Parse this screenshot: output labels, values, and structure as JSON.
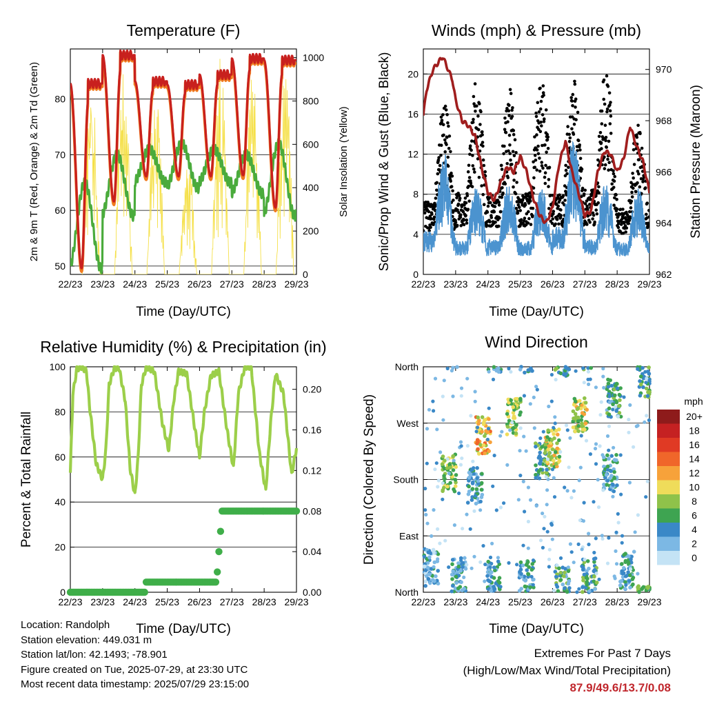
{
  "x_ticks": [
    "22/23",
    "23/23",
    "24/23",
    "25/23",
    "26/23",
    "27/23",
    "28/23",
    "29/23"
  ],
  "info": {
    "location": "Location: Randolph",
    "elevation": "Station elevation: 449.031 m",
    "latlon": "Station lat/lon: 42.1493; -78.901",
    "created": "Figure created on Tue, 2025-07-29, at 23:30 UTC",
    "recent": "Most recent data timestamp: 2025/07/29 23:15:00"
  },
  "extremes": {
    "line1": "Extremes For Past 7 Days",
    "line2": "(High/Low/Max Wind/Total Precipitation)",
    "values": "87.9/49.6/13.7/0.08"
  },
  "chart_data": [
    {
      "type": "line",
      "title": "Temperature (F)",
      "xlabel": "Time (Day/UTC)",
      "ylabel": "2m & 9m T (Red, Orange) & 2m Td (Green)",
      "ylabel_right": "Solar Insolation (Yellow)",
      "x_ticks": [
        "22/23",
        "23/23",
        "24/23",
        "25/23",
        "26/23",
        "27/23",
        "28/23",
        "29/23"
      ],
      "y_ticks": [
        50,
        60,
        70,
        80
      ],
      "y2_ticks": [
        0,
        200,
        400,
        600,
        800,
        1000
      ],
      "ylim": [
        48.5,
        89
      ],
      "y2lim": [
        0,
        1040
      ],
      "grid": true,
      "daily_extremes": {
        "t_max": [
          82.8,
          87.9,
          83.2,
          82.6,
          84.4,
          87.3,
          87.0
        ],
        "t_min": [
          49.6,
          61.6,
          66.1,
          66.1,
          66.1,
          66.3,
          60.5
        ],
        "td_range": [
          [
            49.6,
            65.0
          ],
          [
            59.0,
            70.0
          ],
          [
            65.0,
            71.0
          ],
          [
            64.0,
            72.0
          ],
          [
            65.0,
            71.0
          ],
          [
            63.0,
            70.0
          ],
          [
            59.0,
            72.0
          ]
        ],
        "solar_max": [
          920,
          980,
          870,
          560,
          1000,
          980,
          1000
        ]
      },
      "series": [
        {
          "name": "2m T",
          "color": "#c8201e"
        },
        {
          "name": "9m T",
          "color": "#f07b1f"
        },
        {
          "name": "2m Td",
          "color": "#4aab3c"
        },
        {
          "name": "Solar Insolation",
          "color": "#f5e04a"
        }
      ]
    },
    {
      "type": "line",
      "title": "Winds (mph) & Pressure (mb)",
      "xlabel": "Time (Day/UTC)",
      "ylabel": "Sonic/Prop Wind & Gust (Blue, Black)",
      "ylabel_right": "Station Pressure (Maroon)",
      "x_ticks": [
        "22/23",
        "23/23",
        "24/23",
        "25/23",
        "26/23",
        "27/23",
        "28/23",
        "29/23"
      ],
      "y_ticks": [
        0,
        4,
        8,
        12,
        16,
        20
      ],
      "y2_ticks": [
        962,
        964,
        966,
        968,
        970
      ],
      "ylim": [
        0,
        22.5
      ],
      "y2lim": [
        962,
        970.8
      ],
      "grid": true,
      "pressure": {
        "x": [
          0,
          0.1,
          0.3,
          0.6,
          0.9,
          1.0,
          1.2,
          1.4,
          1.6,
          1.8,
          2.0,
          2.2,
          2.4,
          2.6,
          2.8,
          3.0,
          3.2,
          3.4,
          3.6,
          3.8,
          4.0,
          4.2,
          4.4,
          4.6,
          4.8,
          5.0,
          5.2,
          5.4,
          5.6,
          5.8,
          6.0,
          6.2,
          6.4,
          6.6,
          6.8,
          7.0
        ],
        "values": [
          968.2,
          969.2,
          970.0,
          970.5,
          969.6,
          968.8,
          968.0,
          967.8,
          967.4,
          966.2,
          965.2,
          964.9,
          965.6,
          966.2,
          966.0,
          966.6,
          966.0,
          965.0,
          964.3,
          964.0,
          964.6,
          966.3,
          967.2,
          966.0,
          965.2,
          964.3,
          964.5,
          966.0,
          966.8,
          966.7,
          966.0,
          966.5,
          967.8,
          967.0,
          966.4,
          965.2
        ],
        "color": "#a01e1e"
      },
      "daily_extremes": {
        "wind_max": [
          12.2,
          8.9,
          9.2,
          8.8,
          13.7,
          9.3,
          8.6
        ],
        "gust_max": [
          17.0,
          19.5,
          18.8,
          20.0,
          19.5,
          20.5,
          15.2
        ]
      },
      "series": [
        {
          "name": "Sonic/Prop Wind",
          "color": "#4b93cf"
        },
        {
          "name": "Gust",
          "color": "#000000"
        }
      ]
    },
    {
      "type": "line",
      "title": "Relative Humidity (%) & Precipitation (in)",
      "xlabel": "Time (Day/UTC)",
      "ylabel": "Percent & Total Rainfall",
      "x_ticks": [
        "22/23",
        "23/23",
        "24/23",
        "25/23",
        "26/23",
        "27/23",
        "28/23",
        "29/23"
      ],
      "y_ticks": [
        0,
        20,
        40,
        60,
        80,
        100
      ],
      "y2_ticks": [
        "0.00",
        "0.04",
        "0.08",
        "0.12",
        "0.16",
        "0.20"
      ],
      "ylim": [
        0,
        100
      ],
      "y2lim": [
        0,
        0.2222
      ],
      "grid": true,
      "rh": {
        "x": [
          0,
          0.08,
          0.2,
          0.35,
          0.5,
          0.6,
          0.8,
          1.0,
          1.1,
          1.2,
          1.35,
          1.5,
          1.7,
          1.85,
          2.0,
          2.1,
          2.2,
          2.35,
          2.6,
          2.85,
          3.05,
          3.2,
          3.35,
          3.6,
          3.85,
          4.0,
          4.15,
          4.35,
          4.6,
          4.85,
          5.05,
          5.2,
          5.4,
          5.6,
          5.85,
          6.05,
          6.2,
          6.35,
          6.6,
          6.85,
          7.0
        ],
        "values": [
          53,
          88,
          99,
          100,
          98,
          82,
          57,
          50,
          63,
          92,
          99,
          100,
          85,
          55,
          43,
          60,
          92,
          100,
          98,
          75,
          63,
          85,
          98,
          97,
          73,
          60,
          80,
          96,
          98,
          72,
          55,
          88,
          100,
          100,
          62,
          45,
          75,
          97,
          88,
          52,
          64
        ],
        "color": "#9ccf4a"
      },
      "precip_total": {
        "x": [
          0,
          2.3,
          2.35,
          4.5,
          4.55,
          4.6,
          4.65,
          4.7,
          7.0
        ],
        "values": [
          0.0,
          0.0,
          0.01,
          0.01,
          0.02,
          0.04,
          0.06,
          0.08,
          0.08
        ],
        "color": "#3fae49"
      },
      "series": [
        {
          "name": "Relative Humidity",
          "color": "#9ccf4a"
        },
        {
          "name": "Precipitation",
          "color": "#3fae49"
        }
      ]
    },
    {
      "type": "scatter",
      "title": "Wind Direction",
      "xlabel": "Time (Day/UTC)",
      "ylabel": "Direction (Colored By Speed)",
      "x_ticks": [
        "22/23",
        "23/23",
        "24/23",
        "25/23",
        "26/23",
        "27/23",
        "28/23",
        "29/23"
      ],
      "y_ticks": [
        "North",
        "East",
        "South",
        "West",
        "North"
      ],
      "ylim": [
        0,
        360
      ],
      "grid": true,
      "colorbar": {
        "title": "mph",
        "labels": [
          "20+",
          "18",
          "16",
          "14",
          "12",
          "10",
          "8",
          "6",
          "4",
          "2",
          "0"
        ],
        "colors": [
          "#8e1b1b",
          "#c52122",
          "#e03a24",
          "#f0662a",
          "#f7a23a",
          "#efdc5a",
          "#8fc24a",
          "#3ea451",
          "#3a88c7",
          "#7cb8e4",
          "#c4e3f5"
        ]
      },
      "clusters": [
        {
          "day": 0.25,
          "dir": 40,
          "speed": 3
        },
        {
          "day": 0.8,
          "dir": 190,
          "speed": 8
        },
        {
          "day": 1.1,
          "dir": 25,
          "speed": 4
        },
        {
          "day": 1.6,
          "dir": 170,
          "speed": 4
        },
        {
          "day": 1.85,
          "dir": 250,
          "speed": 11
        },
        {
          "day": 2.2,
          "dir": 20,
          "speed": 4
        },
        {
          "day": 2.8,
          "dir": 280,
          "speed": 8
        },
        {
          "day": 3.2,
          "dir": 20,
          "speed": 4
        },
        {
          "day": 3.7,
          "dir": 210,
          "speed": 6
        },
        {
          "day": 4.0,
          "dir": 230,
          "speed": 9
        },
        {
          "day": 4.3,
          "dir": 15,
          "speed": 5
        },
        {
          "day": 4.85,
          "dir": 285,
          "speed": 9
        },
        {
          "day": 5.15,
          "dir": 25,
          "speed": 5
        },
        {
          "day": 5.8,
          "dir": 190,
          "speed": 4
        },
        {
          "day": 5.9,
          "dir": 310,
          "speed": 5
        },
        {
          "day": 6.3,
          "dir": 35,
          "speed": 4
        },
        {
          "day": 6.85,
          "dir": 340,
          "speed": 6
        }
      ]
    }
  ]
}
